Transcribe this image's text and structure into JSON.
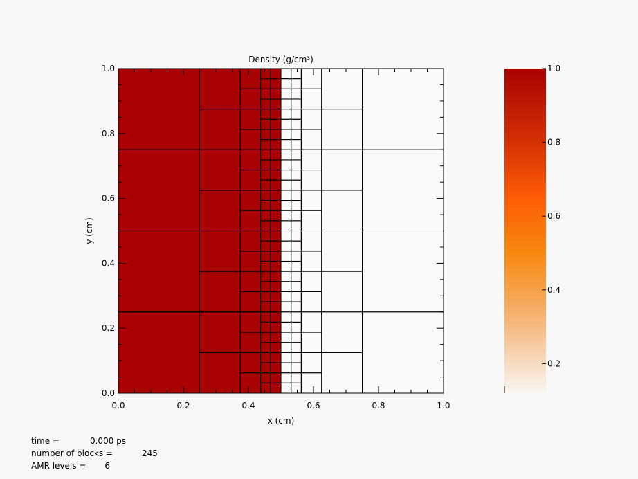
{
  "chart_data": {
    "type": "heatmap",
    "title": "Density (g/cm³)",
    "xlabel": "x (cm)",
    "ylabel": "y (cm)",
    "xlim": [
      0.0,
      1.0
    ],
    "ylim": [
      0.0,
      1.0
    ],
    "x_ticks": [
      "0.0",
      "0.2",
      "0.4",
      "0.6",
      "0.8",
      "1.0"
    ],
    "y_ticks": [
      "0.0",
      "0.2",
      "0.4",
      "0.6",
      "0.8",
      "1.0"
    ],
    "field": {
      "high_value": 1.0,
      "front_x": 0.5,
      "low_value": 0.12
    },
    "amr_columns": [
      {
        "x0": 0.0,
        "x1": 0.25,
        "rows": 4
      },
      {
        "x0": 0.25,
        "x1": 0.375,
        "rows": 8
      },
      {
        "x0": 0.375,
        "x1": 0.4375,
        "rows": 16
      },
      {
        "x0": 0.4375,
        "x1": 0.46875,
        "rows": 32
      },
      {
        "x0": 0.46875,
        "x1": 0.5,
        "rows": 32
      },
      {
        "x0": 0.5,
        "x1": 0.53125,
        "rows": 32
      },
      {
        "x0": 0.53125,
        "x1": 0.5625,
        "rows": 32
      },
      {
        "x0": 0.5625,
        "x1": 0.625,
        "rows": 16
      },
      {
        "x0": 0.625,
        "x1": 0.75,
        "rows": 8
      },
      {
        "x0": 0.75,
        "x1": 1.0,
        "rows": 4
      }
    ],
    "colorbar": {
      "ticks": [
        "1.0",
        "0.8",
        "0.6",
        "0.4",
        "0.2"
      ],
      "tick_values": [
        1.0,
        0.8,
        0.6,
        0.4,
        0.2
      ],
      "range": [
        0.12,
        1.0
      ],
      "stops": [
        {
          "v": 0.12,
          "color": "#f8f6f2"
        },
        {
          "v": 0.3,
          "color": "#f6ba82"
        },
        {
          "v": 0.5,
          "color": "#f7880f"
        },
        {
          "v": 0.65,
          "color": "#fd5c05"
        },
        {
          "v": 0.82,
          "color": "#d02c05"
        },
        {
          "v": 1.0,
          "color": "#a80202"
        }
      ]
    }
  },
  "info": {
    "time_label": "time =",
    "time_value": "0.000 ps",
    "blocks_label": "number of blocks =",
    "blocks_value": "245",
    "levels_label": "AMR levels =",
    "levels_value": "6"
  },
  "colors": {
    "high": "#a80202",
    "low": "#fafafa",
    "line": "#000000"
  }
}
